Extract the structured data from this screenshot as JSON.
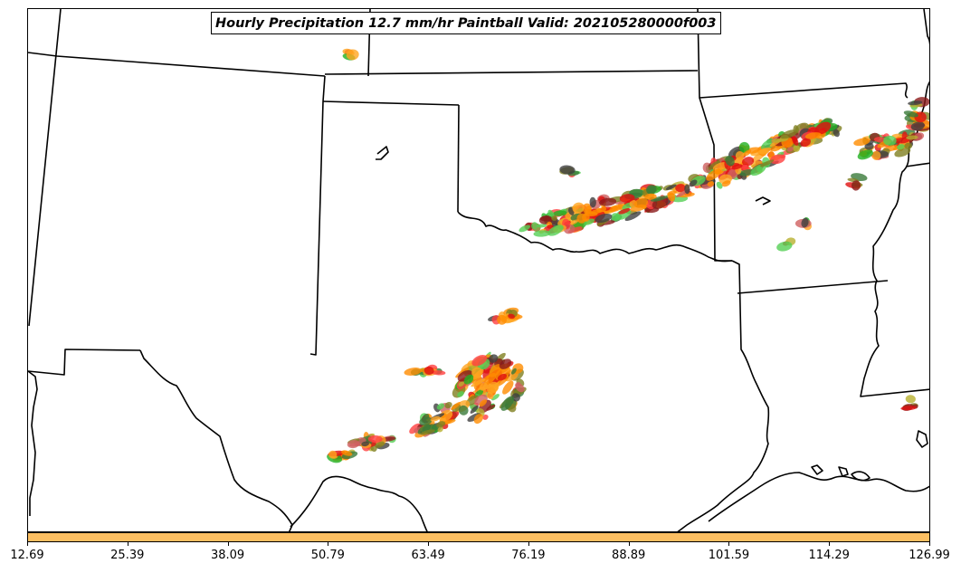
{
  "title": "Hourly Precipitation 12.7 mm/hr Paintball Valid: 202105280000f003",
  "colorbar": {
    "color": "#fcbf62",
    "ticks": [
      "12.69",
      "25.39",
      "38.09",
      "50.79",
      "63.49",
      "76.19",
      "88.89",
      "101.59",
      "114.29",
      "126.99"
    ]
  },
  "paintball_colors": [
    "#ff8c00",
    "#ffa520",
    "#e01010",
    "#ff4040",
    "#22b022",
    "#55d055",
    "#808020",
    "#b8b030",
    "#8b1a1a",
    "#404040",
    "#3a7a3a",
    "#d06060"
  ],
  "map": {
    "boundary_color": "#000000"
  }
}
